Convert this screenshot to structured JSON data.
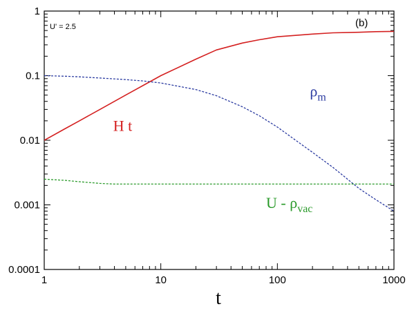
{
  "chart_data": {
    "type": "line",
    "title": "",
    "xlabel": "t",
    "ylabel": "",
    "xscale": "log",
    "yscale": "log",
    "xlim": [
      1,
      1000
    ],
    "ylim": [
      0.0001,
      1
    ],
    "xticks": [
      "1",
      "10",
      "100",
      "1000"
    ],
    "yticks": [
      "1",
      "0.1",
      "0.01",
      "0.001",
      "0.0001"
    ],
    "grid": false,
    "annotations": {
      "parameter": "U' = 2.5",
      "panel": "(b)"
    },
    "series": [
      {
        "label_main": "H t",
        "label_sub": "",
        "color": "#d42020",
        "style": "solid",
        "x": [
          1,
          1.5,
          2,
          3,
          5,
          7,
          10,
          20,
          30,
          50,
          70,
          100,
          200,
          300,
          500,
          700,
          1000
        ],
        "y": [
          0.01,
          0.015,
          0.02,
          0.03,
          0.05,
          0.07,
          0.1,
          0.18,
          0.25,
          0.32,
          0.36,
          0.4,
          0.44,
          0.46,
          0.47,
          0.48,
          0.485
        ]
      },
      {
        "label_main": "ρ",
        "label_sub": "m",
        "color": "#2a3aa0",
        "style": "dashed",
        "x": [
          1,
          1.5,
          2,
          3,
          5,
          7,
          10,
          20,
          30,
          50,
          70,
          100,
          200,
          300,
          500,
          700,
          1000
        ],
        "y": [
          0.1,
          0.098,
          0.096,
          0.092,
          0.087,
          0.083,
          0.077,
          0.061,
          0.049,
          0.033,
          0.024,
          0.016,
          0.0065,
          0.0038,
          0.0018,
          0.0012,
          0.0008
        ]
      },
      {
        "label_main": "U - ρ",
        "label_sub": "vac",
        "color": "#2a9a2a",
        "style": "dashed",
        "x": [
          1,
          1.5,
          2,
          3,
          4,
          5,
          10,
          20,
          50,
          100,
          200,
          500,
          1000
        ],
        "y": [
          0.0025,
          0.0024,
          0.00228,
          0.00215,
          0.0021,
          0.0021,
          0.0021,
          0.0021,
          0.0021,
          0.0021,
          0.0021,
          0.0021,
          0.0021
        ]
      }
    ]
  }
}
